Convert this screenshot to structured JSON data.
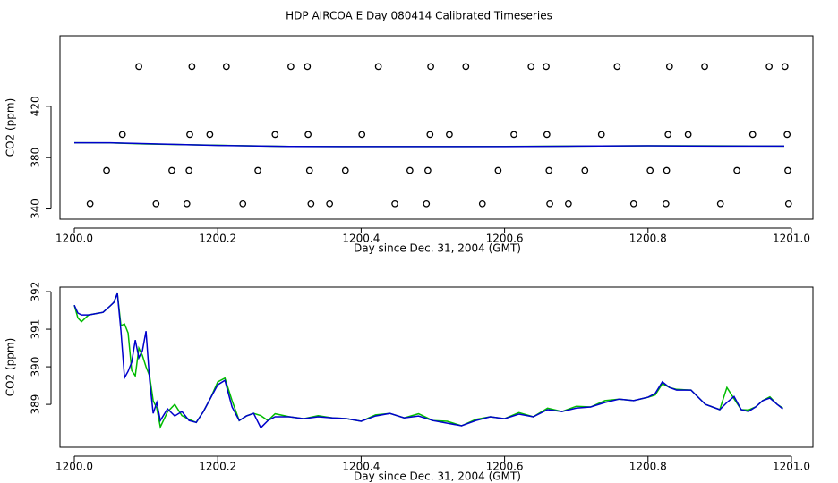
{
  "chart_data": [
    {
      "type": "scatter",
      "title": "HDP AIRCOA E  Day 080414  Calibrated Timeseries",
      "xlabel": "Day since Dec. 31, 2004 (GMT)",
      "ylabel": "CO2 (ppm)",
      "xlim": [
        1199.98,
        1201.03
      ],
      "ylim": [
        332,
        475
      ],
      "xticks": [
        {
          "value": 1200,
          "label": "1200.0"
        },
        1200.2,
        1200.4,
        1200.6,
        1200.8,
        {
          "value": 1201,
          "label": "1201.0"
        }
      ],
      "yticks": [
        340,
        380,
        420
      ],
      "marker_color": "#000000",
      "points": {
        "x": [
          1200.09,
          1200.164,
          1200.212,
          1200.302,
          1200.325,
          1200.424,
          1200.497,
          1200.546,
          1200.637,
          1200.658,
          1200.757,
          1200.83,
          1200.879,
          1200.969,
          1200.991,
          1200.067,
          1200.161,
          1200.189,
          1200.28,
          1200.326,
          1200.401,
          1200.496,
          1200.523,
          1200.613,
          1200.659,
          1200.735,
          1200.828,
          1200.856,
          1200.946,
          1200.994,
          1200.045,
          1200.136,
          1200.16,
          1200.256,
          1200.328,
          1200.378,
          1200.468,
          1200.493,
          1200.591,
          1200.662,
          1200.712,
          1200.803,
          1200.826,
          1200.924,
          1200.995,
          1200.022,
          1200.114,
          1200.157,
          1200.235,
          1200.33,
          1200.356,
          1200.447,
          1200.491,
          1200.569,
          1200.663,
          1200.689,
          1200.78,
          1200.825,
          1200.901,
          1200.996
        ],
        "y": [
          451,
          451,
          451,
          451,
          451,
          451,
          451,
          451,
          451,
          451,
          451,
          451,
          451,
          451,
          451,
          398,
          398,
          398,
          398,
          398,
          398,
          398,
          398,
          398,
          398,
          398,
          398,
          398,
          398,
          398,
          370,
          370,
          370,
          370,
          370,
          370,
          370,
          370,
          370,
          370,
          370,
          370,
          370,
          370,
          370,
          344,
          344,
          344,
          344,
          344,
          344,
          344,
          344,
          344,
          344,
          344,
          344,
          344,
          344,
          344
        ]
      },
      "x": [
        1200.0,
        1200.05,
        1200.1,
        1200.2,
        1200.3,
        1200.4,
        1200.5,
        1200.6,
        1200.7,
        1200.8,
        1200.9,
        1200.99
      ],
      "series": [
        {
          "color": "#00bb00",
          "values": [
            391.6,
            391.5,
            390.6,
            389.6,
            388.7,
            388.6,
            388.6,
            388.7,
            388.9,
            389.2,
            389.1,
            388.9
          ]
        },
        {
          "color": "#0000cc",
          "values": [
            391.6,
            391.6,
            390.9,
            389.5,
            388.7,
            388.6,
            388.6,
            388.6,
            388.9,
            389.2,
            388.9,
            388.9
          ]
        }
      ]
    },
    {
      "type": "line",
      "xlabel": "Day since Dec. 31, 2004 (GMT)",
      "ylabel": "CO2 (ppm)",
      "xlim": [
        1199.98,
        1201.03
      ],
      "ylim": [
        387.86,
        392.12
      ],
      "xticks": [
        {
          "value": 1200,
          "label": "1200.0"
        },
        1200.2,
        1200.4,
        1200.6,
        1200.8,
        {
          "value": 1201,
          "label": "1201.0"
        }
      ],
      "yticks": [
        389,
        390,
        391,
        392
      ],
      "x": [
        1200.0,
        1200.005,
        1200.01,
        1200.02,
        1200.04,
        1200.05,
        1200.055,
        1200.06,
        1200.065,
        1200.07,
        1200.075,
        1200.08,
        1200.085,
        1200.09,
        1200.095,
        1200.1,
        1200.105,
        1200.11,
        1200.115,
        1200.12,
        1200.13,
        1200.14,
        1200.15,
        1200.16,
        1200.17,
        1200.18,
        1200.19,
        1200.2,
        1200.21,
        1200.22,
        1200.23,
        1200.24,
        1200.25,
        1200.26,
        1200.27,
        1200.28,
        1200.3,
        1200.32,
        1200.34,
        1200.36,
        1200.38,
        1200.4,
        1200.42,
        1200.44,
        1200.46,
        1200.48,
        1200.5,
        1200.52,
        1200.54,
        1200.56,
        1200.58,
        1200.6,
        1200.62,
        1200.64,
        1200.66,
        1200.68,
        1200.7,
        1200.72,
        1200.74,
        1200.76,
        1200.78,
        1200.8,
        1200.81,
        1200.82,
        1200.83,
        1200.84,
        1200.86,
        1200.88,
        1200.9,
        1200.91,
        1200.92,
        1200.93,
        1200.94,
        1200.95,
        1200.96,
        1200.97,
        1200.98,
        1200.988
      ],
      "series": [
        {
          "color": "#00bb00",
          "values": [
            391.64,
            391.3,
            391.2,
            391.38,
            391.45,
            391.62,
            391.71,
            391.95,
            391.1,
            391.14,
            390.9,
            389.9,
            389.76,
            390.5,
            390.3,
            390.0,
            389.76,
            389.1,
            388.9,
            388.4,
            388.8,
            389.0,
            388.7,
            388.6,
            388.52,
            388.81,
            389.17,
            389.6,
            389.7,
            389.1,
            388.57,
            388.69,
            388.76,
            388.7,
            388.57,
            388.75,
            388.67,
            388.62,
            388.7,
            388.64,
            388.62,
            388.55,
            388.72,
            388.76,
            388.64,
            388.75,
            388.57,
            388.55,
            388.43,
            388.6,
            388.67,
            388.62,
            388.78,
            388.67,
            388.9,
            388.81,
            388.95,
            388.93,
            389.1,
            389.14,
            389.1,
            389.19,
            389.25,
            389.55,
            389.45,
            389.4,
            389.38,
            389.0,
            388.86,
            389.45,
            389.15,
            388.86,
            388.85,
            388.93,
            389.1,
            389.2,
            389.0,
            388.9
          ]
        },
        {
          "color": "#0000cc",
          "values": [
            391.64,
            391.43,
            391.38,
            391.38,
            391.45,
            391.62,
            391.71,
            391.95,
            390.95,
            389.71,
            389.88,
            390.12,
            390.71,
            390.24,
            390.43,
            390.95,
            389.64,
            388.76,
            389.05,
            388.57,
            388.88,
            388.69,
            388.81,
            388.57,
            388.52,
            388.81,
            389.17,
            389.52,
            389.64,
            388.93,
            388.57,
            388.69,
            388.76,
            388.38,
            388.57,
            388.67,
            388.67,
            388.62,
            388.67,
            388.64,
            388.62,
            388.55,
            388.69,
            388.76,
            388.64,
            388.69,
            388.57,
            388.5,
            388.43,
            388.57,
            388.67,
            388.62,
            388.74,
            388.67,
            388.86,
            388.81,
            388.9,
            388.93,
            389.05,
            389.14,
            389.1,
            389.19,
            389.29,
            389.6,
            389.45,
            389.38,
            389.38,
            389.0,
            388.86,
            389.05,
            389.21,
            388.86,
            388.81,
            388.93,
            389.1,
            389.17,
            389.0,
            388.88
          ]
        }
      ]
    }
  ]
}
